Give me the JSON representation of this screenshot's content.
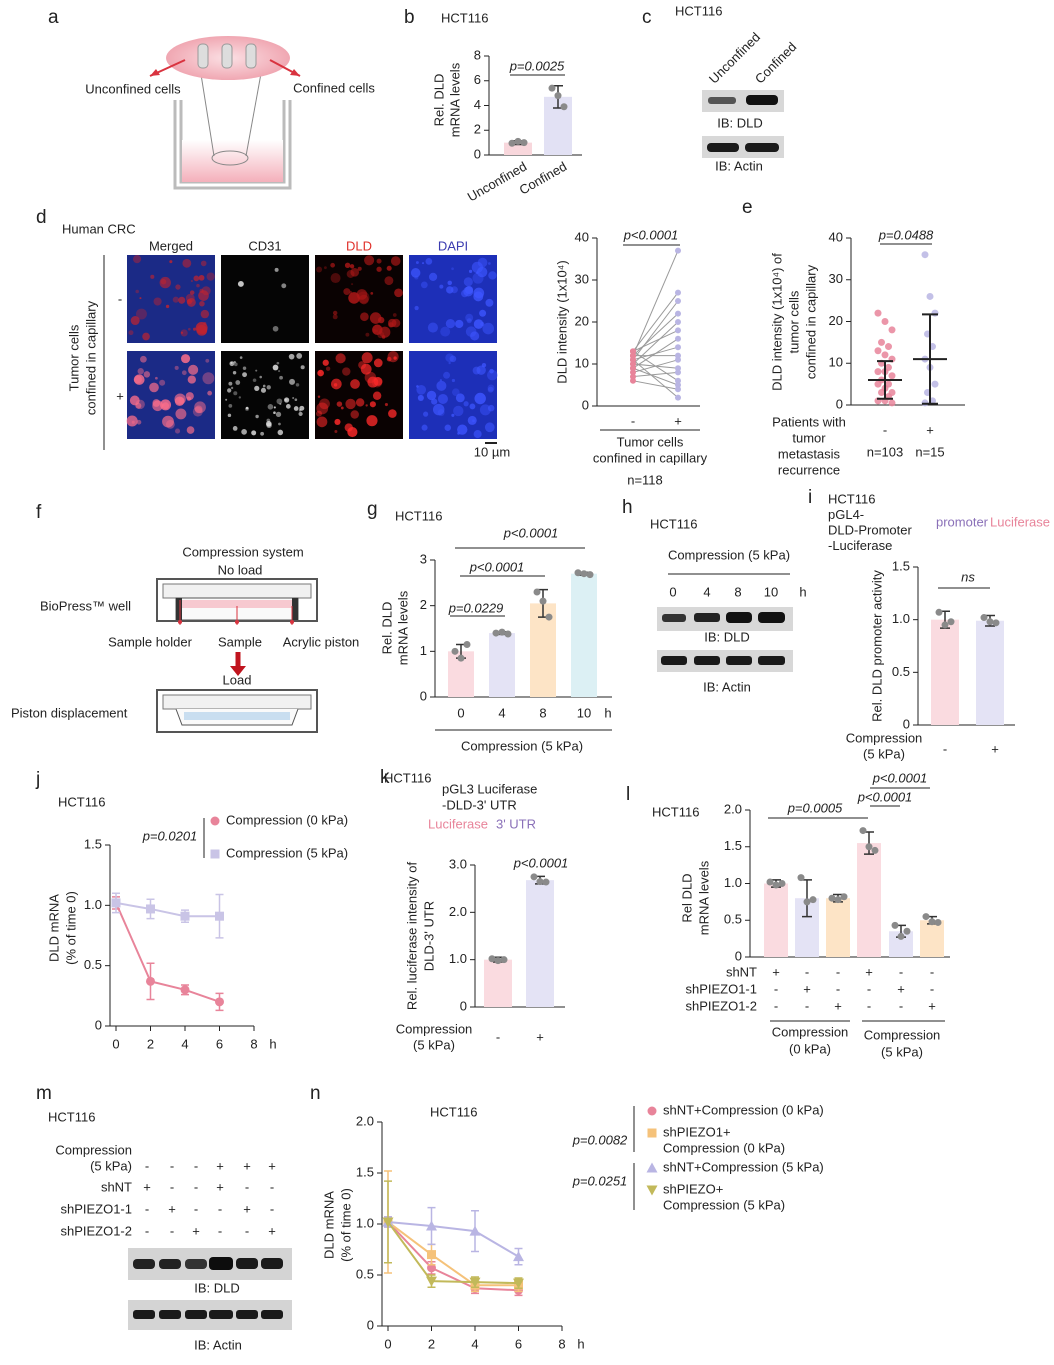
{
  "panels": {
    "a": {
      "letter": "a",
      "left_label": "Unconfined cells",
      "right_label": "Confined cells"
    },
    "b": {
      "type": "bar",
      "letter": "b",
      "title": "HCT116",
      "ylabel": [
        "Rel. DLD",
        "mRNA levels"
      ],
      "categories": [
        "Unconfined",
        "Confined"
      ],
      "values": [
        1,
        4.7
      ],
      "errors": [
        0.15,
        0.9
      ],
      "points": [
        [
          0.95,
          1.1,
          1.0
        ],
        [
          5.4,
          4.8,
          3.9
        ]
      ],
      "colors": [
        "#f8d7dc",
        "#e2e1f4"
      ],
      "ylim": [
        0,
        8
      ],
      "yticks": [
        0,
        2,
        4,
        6,
        8
      ],
      "p_values": [
        "p=0.0025"
      ]
    },
    "c": {
      "letter": "c",
      "title": "HCT116",
      "lanes": [
        "Unconfined",
        "Confined"
      ],
      "blots": [
        "IB: DLD",
        "IB: Actin"
      ]
    },
    "d": {
      "letter": "d",
      "title": "Human CRC",
      "channels": [
        "Merged",
        "CD31",
        "DLD",
        "DAPI"
      ],
      "row_label": [
        "Tumor cells",
        "confined in capillary"
      ],
      "rows": [
        "-",
        "+"
      ],
      "scale_bar": "10 µm",
      "chart": {
        "type": "paired",
        "categories": [
          "-",
          "+"
        ],
        "pairs": [
          [
            12,
            37
          ],
          [
            13,
            27
          ],
          [
            11,
            25
          ],
          [
            12,
            22
          ],
          [
            10,
            20
          ],
          [
            13,
            18
          ],
          [
            9,
            16
          ],
          [
            11,
            14
          ],
          [
            12,
            12
          ],
          [
            8,
            11
          ],
          [
            10,
            9
          ],
          [
            7,
            8
          ],
          [
            13,
            6
          ],
          [
            9,
            5
          ],
          [
            6,
            4
          ],
          [
            11,
            2
          ]
        ],
        "colors": [
          "#e8849a",
          "#b9b5e3"
        ],
        "ylim": [
          0,
          40
        ],
        "yticks": [
          0,
          10,
          20,
          30,
          40
        ],
        "ylabel": "DLD intensity (1x10⁴)",
        "xlabel": [
          "Tumor cells",
          "confined in capillary"
        ],
        "n": "n=118",
        "p_values": [
          "p<0.0001"
        ]
      }
    },
    "e": {
      "type": "scatter",
      "letter": "e",
      "categories": [
        "-",
        "+"
      ],
      "points": [
        [
          22,
          20,
          18,
          15,
          14,
          13,
          12,
          11,
          10,
          9,
          8,
          8,
          7,
          6,
          5,
          5,
          4,
          3,
          3,
          2,
          1,
          1,
          0.5
        ],
        [
          36,
          26,
          22,
          17,
          14,
          11,
          9,
          5,
          3,
          1,
          0.5
        ]
      ],
      "means": [
        6,
        11
      ],
      "sd": [
        4.5,
        10.7
      ],
      "colors": [
        "#e8849a",
        "#b9b5e3"
      ],
      "ylim": [
        0,
        40
      ],
      "yticks": [
        0,
        10,
        20,
        30,
        40
      ],
      "ylabel": [
        "DLD intensity (1x10⁴) of",
        "tumor cells",
        "confined in capillary"
      ],
      "xlabel": [
        "Patients with",
        "tumor",
        "metastasis",
        "recurrence"
      ],
      "n": [
        "n=103",
        "n=15"
      ],
      "p_values": [
        "p=0.0488"
      ]
    },
    "f": {
      "letter": "f",
      "title": "Compression system",
      "top_state": "No load",
      "well": "BioPress™ well",
      "parts": [
        "Sample holder",
        "Sample",
        "Acrylic piston"
      ],
      "bottom_state": "Load",
      "displacement": "Piston displacement"
    },
    "g": {
      "type": "bar",
      "letter": "g",
      "title": "HCT116",
      "ylabel": [
        "Rel. DLD",
        "mRNA levels"
      ],
      "categories": [
        "0",
        "4",
        "8",
        "10"
      ],
      "unit": "h",
      "values": [
        1,
        1.4,
        2.05,
        2.7
      ],
      "errors": [
        0.15,
        0.03,
        0.3,
        0.03
      ],
      "points": [
        [
          1.0,
          0.85,
          1.15
        ],
        [
          1.4,
          1.42,
          1.38
        ],
        [
          2.3,
          2.1,
          1.75
        ],
        [
          2.72,
          2.7,
          2.68
        ]
      ],
      "colors": [
        "#fadbe0",
        "#e4e3f5",
        "#fde4c6",
        "#dcf0f4"
      ],
      "ylim": [
        0,
        3
      ],
      "yticks": [
        0,
        1,
        2,
        3
      ],
      "xlabel": "Compression (5 kPa)",
      "p_values": [
        "p=0.0229",
        "p<0.0001",
        "p<0.0001"
      ]
    },
    "h": {
      "letter": "h",
      "title": "HCT116",
      "condition": "Compression (5 kPa)",
      "lanes": [
        "0",
        "4",
        "8",
        "10"
      ],
      "unit": "h",
      "blots": [
        "IB: DLD",
        "IB: Actin"
      ]
    },
    "i": {
      "type": "bar",
      "letter": "i",
      "title": [
        "HCT116",
        "pGL4-",
        "DLD-Promoter",
        "-Luciferase"
      ],
      "construct": [
        "promoter",
        "Luciferase"
      ],
      "ylabel": [
        "Rel. DLD promoter activity"
      ],
      "categories": [
        "-",
        "+"
      ],
      "values": [
        1,
        0.99
      ],
      "errors": [
        0.08,
        0.05
      ],
      "points": [
        [
          1.07,
          0.95,
          0.98
        ],
        [
          1.02,
          0.98,
          0.97
        ]
      ],
      "colors": [
        "#fadbe0",
        "#e4e3f5"
      ],
      "ylim": [
        0,
        1.5
      ],
      "yticks": [
        0,
        0.5,
        {
          "value": 1,
          "label": "1.0"
        },
        1.5
      ],
      "xlabel": [
        "Compression",
        "(5 kPa)"
      ],
      "p_values": [
        "ns"
      ]
    },
    "j": {
      "type": "line",
      "letter": "j",
      "title": "HCT116",
      "x": [
        0,
        2,
        4,
        6
      ],
      "series": [
        {
          "name": "Compression (0 kPa)",
          "color": "#e8849a",
          "marker": "circle",
          "values": [
            1.02,
            0.37,
            0.3,
            0.2
          ],
          "errors": [
            0.05,
            0.15,
            0.04,
            0.07
          ]
        },
        {
          "name": "Compression (5 kPa)",
          "color": "#c9c4e6",
          "marker": "square",
          "values": [
            1.02,
            0.97,
            0.91,
            0.91
          ],
          "errors": [
            0.08,
            0.08,
            0.05,
            0.18
          ]
        }
      ],
      "xlim": [
        0,
        8
      ],
      "xticks": [
        0,
        2,
        4,
        6,
        8
      ],
      "unit": "h",
      "ylim": [
        0,
        1.5
      ],
      "yticks": [
        0,
        0.5,
        {
          "value": 1,
          "label": "1.0"
        },
        1.5
      ],
      "ylabel": [
        "DLD mRNA",
        "(% of time 0)"
      ],
      "p_values": [
        "p=0.0201"
      ]
    },
    "k": {
      "type": "bar",
      "letter": "k",
      "title": "HCT116",
      "construct_title": [
        "pGL3 Luciferase",
        "-DLD-3' UTR"
      ],
      "construct": [
        "Luciferase",
        "3' UTR"
      ],
      "ylabel": [
        "Rel. luciferase intensity of",
        "DLD-3' UTR"
      ],
      "categories": [
        "-",
        "+"
      ],
      "values": [
        1,
        2.68
      ],
      "errors": [
        0.05,
        0.08
      ],
      "points": [
        [
          1.02,
          0.98,
          1.0
        ],
        [
          2.75,
          2.65,
          2.64
        ]
      ],
      "colors": [
        "#fadbe0",
        "#e4e3f5"
      ],
      "ylim": [
        0,
        3
      ],
      "yticks": [
        0,
        {
          "value": 1,
          "label": "1.0"
        },
        {
          "value": 2,
          "label": "2.0"
        },
        {
          "value": 3,
          "label": "3.0"
        }
      ],
      "xlabel": [
        "Compression",
        "(5 kPa)"
      ],
      "p_values": [
        "p<0.0001"
      ]
    },
    "l": {
      "type": "bar",
      "letter": "l",
      "title": "HCT116",
      "ylabel": [
        "Rel DLD",
        "mRNA levels"
      ],
      "values": [
        1,
        0.8,
        0.8,
        1.55,
        0.35,
        0.5
      ],
      "errors": [
        0.05,
        0.25,
        0.05,
        0.15,
        0.08,
        0.05
      ],
      "points": [
        [
          1.02,
          0.98,
          1.0
        ],
        [
          1.08,
          0.75,
          0.78
        ],
        [
          0.8,
          0.78,
          0.82
        ],
        [
          1.72,
          1.5,
          1.45
        ],
        [
          0.43,
          0.28,
          0.35
        ],
        [
          0.55,
          0.48,
          0.47
        ]
      ],
      "colors": [
        "#fadbe0",
        "#e4e3f5",
        "#fde4c6",
        "#fadbe0",
        "#e4e3f5",
        "#fde4c6"
      ],
      "ylim": [
        0,
        2
      ],
      "yticks": [
        0,
        0.5,
        {
          "value": 1,
          "label": "1.0"
        },
        1.5,
        {
          "value": 2,
          "label": "2.0"
        }
      ],
      "conditions": [
        {
          "name": "shNT",
          "signs": [
            "+",
            "-",
            "-",
            "+",
            "-",
            "-"
          ]
        },
        {
          "name": "shPIEZO1-1",
          "signs": [
            "-",
            "+",
            "-",
            "-",
            "+",
            "-"
          ]
        },
        {
          "name": "shPIEZO1-2",
          "signs": [
            "-",
            "-",
            "+",
            "-",
            "-",
            "+"
          ]
        }
      ],
      "groups": [
        [
          "Compression",
          "(0 kPa)"
        ],
        [
          "Compression",
          "(5 kPa)"
        ]
      ],
      "p_values": [
        "p=0.0005",
        "p<0.0001",
        "p<0.0001"
      ]
    },
    "m": {
      "letter": "m",
      "title": "HCT116",
      "conditions": [
        {
          "name": [
            "Compression",
            "(5 kPa)"
          ],
          "signs": [
            "-",
            "-",
            "-",
            "+",
            "+",
            "+"
          ]
        },
        {
          "name": [
            "shNT"
          ],
          "signs": [
            "+",
            "-",
            "-",
            "+",
            "-",
            "-"
          ]
        },
        {
          "name": [
            "shPIEZO1-1"
          ],
          "signs": [
            "-",
            "+",
            "-",
            "-",
            "+",
            "-"
          ]
        },
        {
          "name": [
            "shPIEZO1-2"
          ],
          "signs": [
            "-",
            "-",
            "+",
            "-",
            "-",
            "+"
          ]
        }
      ],
      "blots": [
        "IB: DLD",
        "IB: Actin"
      ]
    },
    "n": {
      "type": "line",
      "letter": "n",
      "title": "HCT116",
      "x": [
        0,
        2,
        4,
        6
      ],
      "series": [
        {
          "name": [
            "shNT+Compression (0 kPa)"
          ],
          "color": "#e8849a",
          "marker": "circle",
          "values": [
            1.02,
            0.57,
            0.37,
            0.35
          ],
          "errors": [
            0.05,
            0.06,
            0.05,
            0.05
          ]
        },
        {
          "name": [
            "shPIEZO1+",
            "Compression (0 kPa)"
          ],
          "color": "#f5c27a",
          "marker": "square",
          "values": [
            1.02,
            0.7,
            0.4,
            0.4
          ],
          "errors": [
            0.5,
            0.1,
            0.06,
            0.06
          ]
        },
        {
          "name": [
            "shNT+Compression (5 kPa)"
          ],
          "color": "#b9b5e3",
          "marker": "triangle",
          "values": [
            1.02,
            0.98,
            0.93,
            0.68
          ],
          "errors": [
            0.05,
            0.18,
            0.2,
            0.08
          ]
        },
        {
          "name": [
            "shPIEZO+",
            "Compression (5 kPa)"
          ],
          "color": "#c2b95a",
          "marker": "triangle-down",
          "values": [
            1.02,
            0.44,
            0.43,
            0.42
          ],
          "errors": [
            0.4,
            0.06,
            0.05,
            0.05
          ]
        }
      ],
      "xlim": [
        0,
        8
      ],
      "xticks": [
        0,
        2,
        4,
        6,
        8
      ],
      "unit": "h",
      "ylim": [
        0,
        2
      ],
      "yticks": [
        0,
        0.5,
        {
          "value": 1,
          "label": "1.0"
        },
        1.5,
        {
          "value": 2,
          "label": "2.0"
        }
      ],
      "ylabel": [
        "DLD mRNA",
        "(% of time 0)"
      ],
      "p_values": [
        "p=0.0082",
        "p=0.0251"
      ]
    }
  }
}
